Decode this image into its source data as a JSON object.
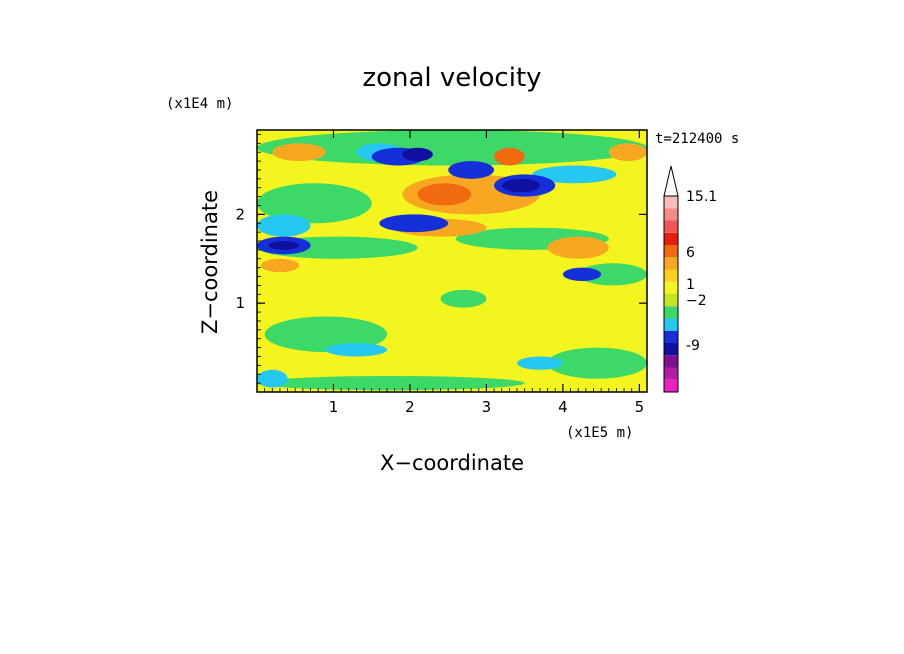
{
  "chart_data": {
    "type": "heatmap",
    "title": "zonal velocity",
    "xlabel": "X−coordinate",
    "ylabel": "Z−coordinate",
    "x_unit_label": "(x1E5 m)",
    "y_unit_label": "(x1E4 m)",
    "annotation": "t=212400 s",
    "xlim": [
      0,
      5.1
    ],
    "ylim": [
      0,
      2.95
    ],
    "x_ticks": [
      {
        "value": 1,
        "label": "1"
      },
      {
        "value": 2,
        "label": "2"
      },
      {
        "value": 3,
        "label": "3"
      },
      {
        "value": 4,
        "label": "4"
      },
      {
        "value": 5,
        "label": "5"
      }
    ],
    "y_ticks": [
      {
        "value": 1,
        "label": "1"
      },
      {
        "value": 2,
        "label": "2"
      }
    ],
    "colorbar": {
      "extend": "max",
      "levels": [
        {
          "color": "#ee1ec2"
        },
        {
          "color": "#b01ea6"
        },
        {
          "color": "#800f90"
        },
        {
          "color": "#1010a0"
        },
        {
          "color": "#1530d8"
        },
        {
          "color": "#24c8f0"
        },
        {
          "color": "#3cd868"
        },
        {
          "color": "#c4e61e"
        },
        {
          "color": "#f4f41e"
        },
        {
          "color": "#f8d020"
        },
        {
          "color": "#f8a820"
        },
        {
          "color": "#f26a10"
        },
        {
          "color": "#e81c10"
        },
        {
          "color": "#f05858"
        },
        {
          "color": "#f48a8a"
        },
        {
          "color": "#f8bcbc"
        }
      ],
      "tick_labels": [
        {
          "label": "-9"
        },
        {
          "label": "−2"
        },
        {
          "label": "1"
        },
        {
          "label": "6"
        },
        {
          "label": "15.1"
        }
      ]
    },
    "field": {
      "background_color": "#f4f41e",
      "regions": [
        {
          "color": "#3cd868",
          "x": [
            0.0,
            5.1
          ],
          "z": [
            2.55,
            2.95
          ]
        },
        {
          "color": "#3cd868",
          "x": [
            0.0,
            1.5
          ],
          "z": [
            1.9,
            2.35
          ]
        },
        {
          "color": "#3cd868",
          "x": [
            0.0,
            2.1
          ],
          "z": [
            1.5,
            1.75
          ]
        },
        {
          "color": "#3cd868",
          "x": [
            0.1,
            1.7
          ],
          "z": [
            0.45,
            0.85
          ]
        },
        {
          "color": "#3cd868",
          "x": [
            2.6,
            4.6
          ],
          "z": [
            1.6,
            1.85
          ]
        },
        {
          "color": "#3cd868",
          "x": [
            3.8,
            5.1
          ],
          "z": [
            0.15,
            0.5
          ]
        },
        {
          "color": "#3cd868",
          "x": [
            0.0,
            3.5
          ],
          "z": [
            0.02,
            0.18
          ]
        },
        {
          "color": "#3cd868",
          "x": [
            2.4,
            3.0
          ],
          "z": [
            0.95,
            1.15
          ]
        },
        {
          "color": "#3cd868",
          "x": [
            4.2,
            5.1
          ],
          "z": [
            1.2,
            1.45
          ]
        },
        {
          "color": "#f8a820",
          "x": [
            1.9,
            3.7
          ],
          "z": [
            2.0,
            2.45
          ]
        },
        {
          "color": "#f8a820",
          "x": [
            0.2,
            0.9
          ],
          "z": [
            2.6,
            2.8
          ]
        },
        {
          "color": "#f8a820",
          "x": [
            3.8,
            4.6
          ],
          "z": [
            1.5,
            1.75
          ]
        },
        {
          "color": "#f8a820",
          "x": [
            0.05,
            0.55
          ],
          "z": [
            1.35,
            1.5
          ]
        },
        {
          "color": "#f8a820",
          "x": [
            1.8,
            3.0
          ],
          "z": [
            1.75,
            1.95
          ]
        },
        {
          "color": "#f8a820",
          "x": [
            4.6,
            5.1
          ],
          "z": [
            2.6,
            2.8
          ]
        },
        {
          "color": "#f26a10",
          "x": [
            2.1,
            2.8
          ],
          "z": [
            2.1,
            2.35
          ]
        },
        {
          "color": "#f26a10",
          "x": [
            3.1,
            3.5
          ],
          "z": [
            2.55,
            2.75
          ]
        },
        {
          "color": "#24c8f0",
          "x": [
            3.6,
            4.7
          ],
          "z": [
            2.35,
            2.55
          ]
        },
        {
          "color": "#24c8f0",
          "x": [
            0.0,
            0.7
          ],
          "z": [
            1.75,
            2.0
          ]
        },
        {
          "color": "#24c8f0",
          "x": [
            0.9,
            1.7
          ],
          "z": [
            0.4,
            0.55
          ]
        },
        {
          "color": "#24c8f0",
          "x": [
            1.3,
            1.9
          ],
          "z": [
            2.6,
            2.8
          ]
        },
        {
          "color": "#24c8f0",
          "x": [
            0.0,
            0.4
          ],
          "z": [
            0.05,
            0.25
          ]
        },
        {
          "color": "#24c8f0",
          "x": [
            3.4,
            4.0
          ],
          "z": [
            0.25,
            0.4
          ]
        },
        {
          "color": "#1530d8",
          "x": [
            1.5,
            2.2
          ],
          "z": [
            2.55,
            2.75
          ]
        },
        {
          "color": "#1530d8",
          "x": [
            2.5,
            3.1
          ],
          "z": [
            2.4,
            2.6
          ]
        },
        {
          "color": "#1530d8",
          "x": [
            3.1,
            3.9
          ],
          "z": [
            2.2,
            2.45
          ]
        },
        {
          "color": "#1530d8",
          "x": [
            0.0,
            0.7
          ],
          "z": [
            1.55,
            1.75
          ]
        },
        {
          "color": "#1530d8",
          "x": [
            1.6,
            2.5
          ],
          "z": [
            1.8,
            2.0
          ]
        },
        {
          "color": "#1530d8",
          "x": [
            4.0,
            4.5
          ],
          "z": [
            1.25,
            1.4
          ]
        },
        {
          "color": "#1010a0",
          "x": [
            1.9,
            2.3
          ],
          "z": [
            2.6,
            2.75
          ]
        },
        {
          "color": "#1010a0",
          "x": [
            3.2,
            3.7
          ],
          "z": [
            2.25,
            2.4
          ]
        },
        {
          "color": "#1010a0",
          "x": [
            0.15,
            0.55
          ],
          "z": [
            1.6,
            1.7
          ]
        }
      ]
    }
  }
}
